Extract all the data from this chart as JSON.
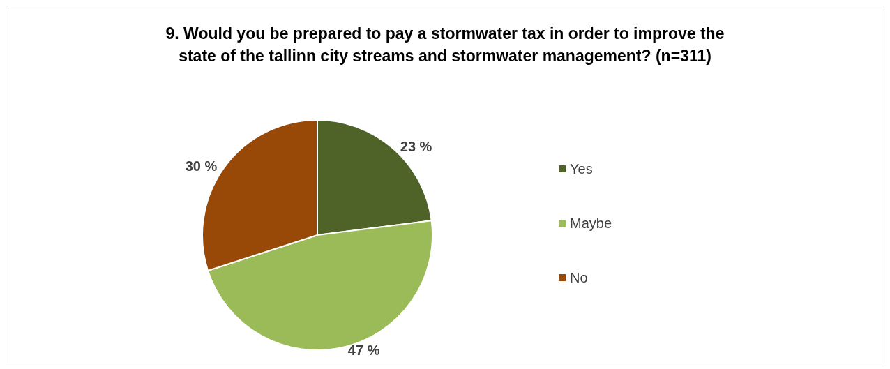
{
  "chart_data": {
    "type": "pie",
    "title": "9. Would you be prepared to pay a stormwater tax in order to improve the\nstate of the tallinn city streams and stormwater management? (n=311)",
    "categories": [
      "Yes",
      "Maybe",
      "No"
    ],
    "values": [
      23,
      47,
      30
    ],
    "value_labels": [
      "23 %",
      "47 %",
      "30 %"
    ],
    "colors": [
      "#4f6228",
      "#9bbb59",
      "#984807"
    ],
    "legend": "right"
  }
}
